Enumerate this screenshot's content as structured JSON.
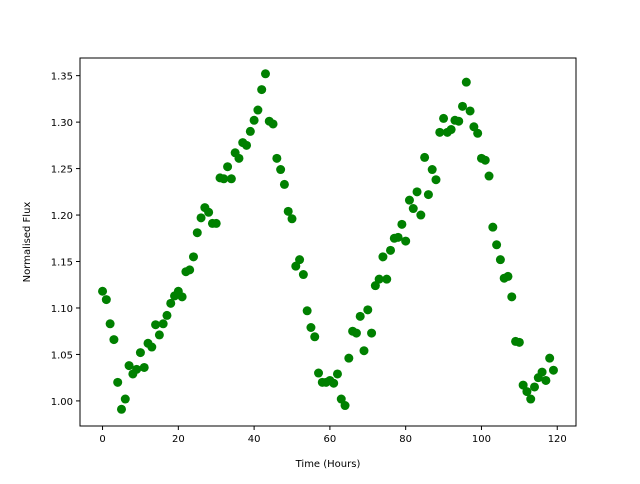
{
  "chart_data": {
    "type": "scatter",
    "xlabel": "Time (Hours)",
    "ylabel": "Normalised Flux",
    "color": "#008000",
    "x": [
      0,
      1,
      2,
      3,
      4,
      5,
      6,
      7,
      8,
      9,
      10,
      11,
      12,
      13,
      14,
      15,
      16,
      17,
      18,
      19,
      20,
      21,
      22,
      23,
      24,
      25,
      26,
      27,
      28,
      29,
      30,
      31,
      32,
      33,
      34,
      35,
      36,
      37,
      38,
      39,
      40,
      41,
      42,
      43,
      44,
      45,
      46,
      47,
      48,
      49,
      50,
      51,
      52,
      53,
      54,
      55,
      56,
      57,
      58,
      59,
      60,
      61,
      62,
      63,
      64,
      65,
      66,
      67,
      68,
      69,
      70,
      71,
      72,
      73,
      74,
      75,
      76,
      77,
      78,
      79,
      80,
      81,
      82,
      83,
      84,
      85,
      86,
      87,
      88,
      89,
      90,
      91,
      92,
      93,
      94,
      95,
      96,
      97,
      98,
      99,
      100,
      101,
      102,
      103,
      104,
      105,
      106,
      107,
      108,
      109,
      110,
      111,
      112,
      113,
      114,
      115,
      116,
      117,
      118,
      119
    ],
    "values": [
      1.118,
      1.109,
      1.083,
      1.066,
      1.02,
      0.991,
      1.002,
      1.038,
      1.029,
      1.034,
      1.052,
      1.036,
      1.062,
      1.058,
      1.082,
      1.071,
      1.083,
      1.092,
      1.105,
      1.113,
      1.118,
      1.112,
      1.139,
      1.141,
      1.155,
      1.181,
      1.197,
      1.208,
      1.203,
      1.191,
      1.191,
      1.24,
      1.239,
      1.252,
      1.239,
      1.267,
      1.261,
      1.278,
      1.275,
      1.29,
      1.302,
      1.313,
      1.335,
      1.352,
      1.301,
      1.298,
      1.261,
      1.249,
      1.233,
      1.204,
      1.196,
      1.145,
      1.152,
      1.136,
      1.097,
      1.079,
      1.069,
      1.03,
      1.02,
      1.02,
      1.022,
      1.019,
      1.029,
      1.002,
      0.995,
      1.046,
      1.075,
      1.073,
      1.091,
      1.054,
      1.098,
      1.073,
      1.124,
      1.131,
      1.155,
      1.131,
      1.162,
      1.175,
      1.176,
      1.19,
      1.172,
      1.216,
      1.207,
      1.225,
      1.2,
      1.262,
      1.222,
      1.249,
      1.238,
      1.289,
      1.304,
      1.289,
      1.292,
      1.302,
      1.301,
      1.317,
      1.343,
      1.312,
      1.295,
      1.288,
      1.261,
      1.259,
      1.242,
      1.187,
      1.168,
      1.152,
      1.132,
      1.134,
      1.112,
      1.064,
      1.063,
      1.017,
      1.01,
      1.002,
      1.015,
      1.025,
      1.031,
      1.022,
      1.046,
      1.033
    ],
    "xlim": [
      -5.95,
      124.95
    ],
    "xticks": [
      0,
      20,
      40,
      60,
      80,
      100,
      120
    ],
    "ylim": [
      0.973,
      1.369
    ],
    "yticks": [
      {
        "value": 1.0,
        "label": "1.00"
      },
      {
        "value": 1.05,
        "label": "1.05"
      },
      {
        "value": 1.1,
        "label": "1.10"
      },
      {
        "value": 1.15,
        "label": "1.15"
      },
      {
        "value": 1.2,
        "label": "1.20"
      },
      {
        "value": 1.25,
        "label": "1.25"
      },
      {
        "value": 1.3,
        "label": "1.30"
      },
      {
        "value": 1.35,
        "label": "1.35"
      }
    ]
  }
}
